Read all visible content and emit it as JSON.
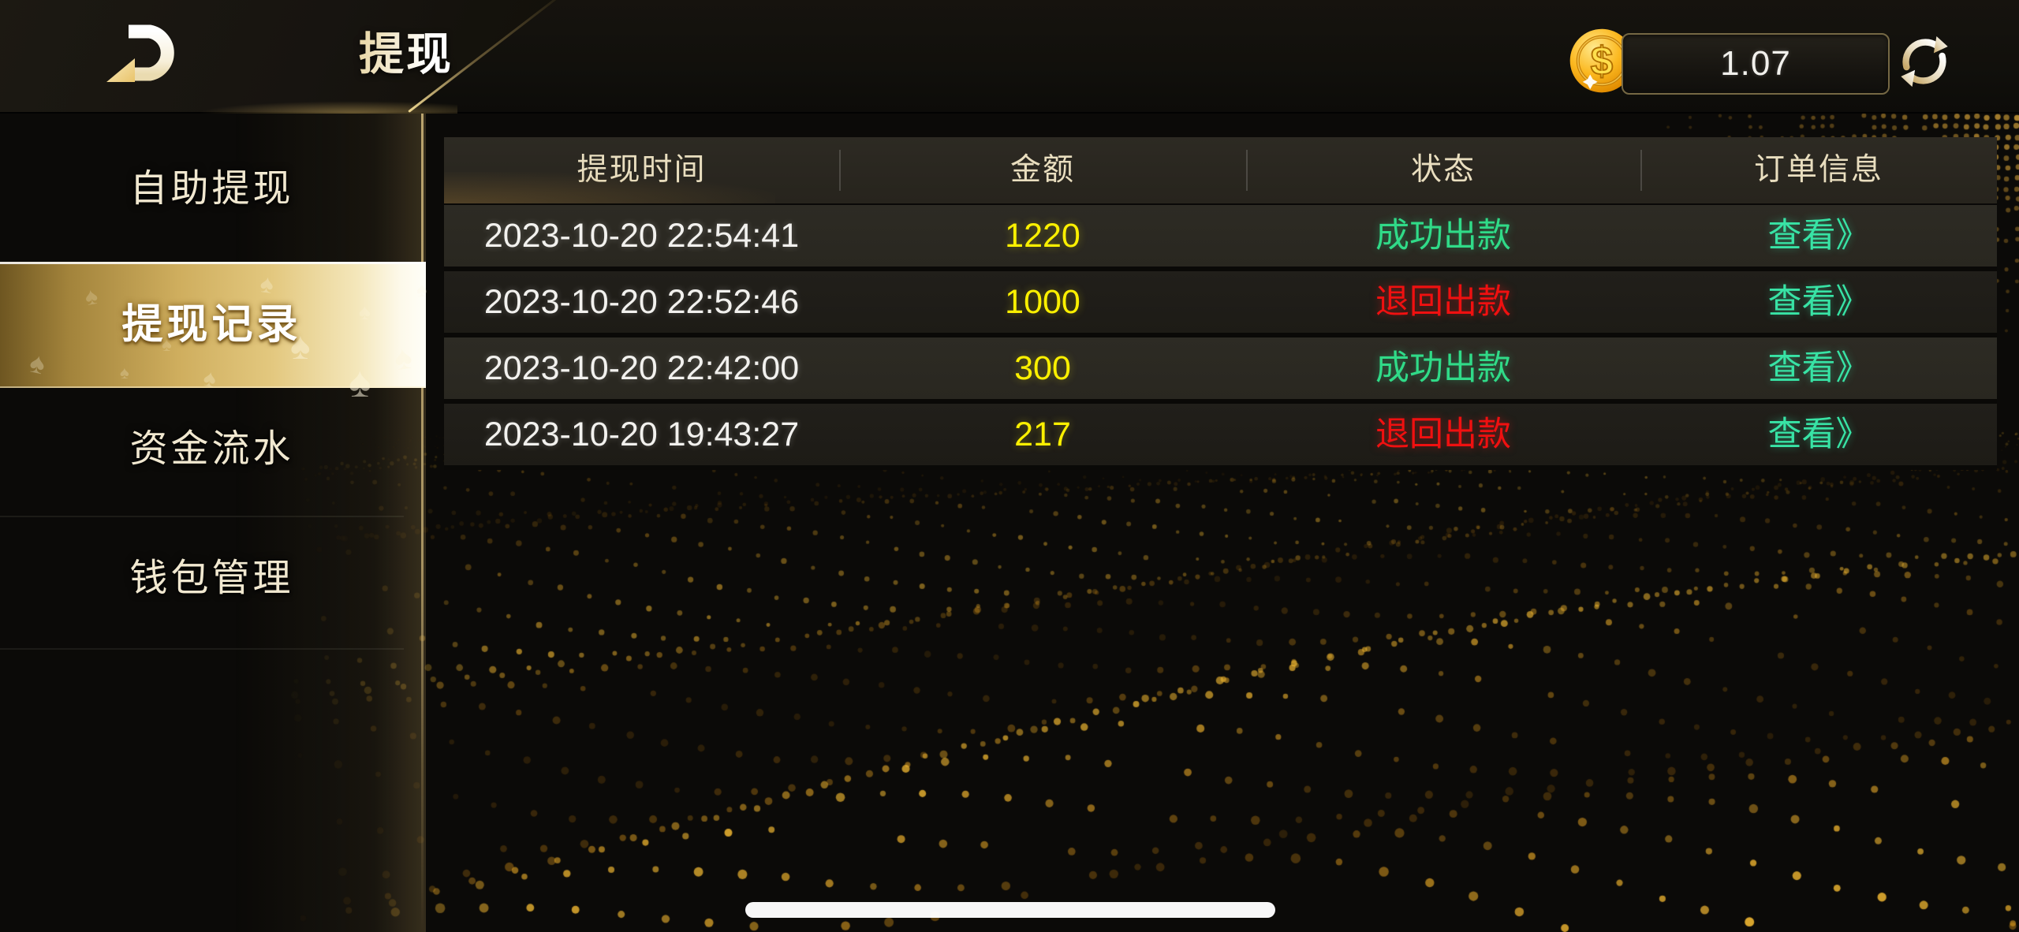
{
  "topbar": {
    "title": "提现",
    "balance": "1.07",
    "logo_icon": "d-swoosh-logo",
    "coin_icon": "gold-dollar-coin",
    "refresh_icon": "refresh-arrows"
  },
  "sidebar": {
    "items": [
      {
        "label": "自助提现",
        "selected": false
      },
      {
        "label": "提现记录",
        "selected": true
      },
      {
        "label": "资金流水",
        "selected": false
      },
      {
        "label": "钱包管理",
        "selected": false
      }
    ]
  },
  "table": {
    "columns": [
      "提现时间",
      "金额",
      "状态",
      "订单信息"
    ],
    "rows": [
      {
        "time": "2023-10-20 22:54:41",
        "amount": "1220",
        "status": "成功出款",
        "status_type": "success",
        "action": "查看》"
      },
      {
        "time": "2023-10-20 22:52:46",
        "amount": "1000",
        "status": "退回出款",
        "status_type": "refund",
        "action": "查看》"
      },
      {
        "time": "2023-10-20 22:42:00",
        "amount": "300",
        "status": "成功出款",
        "status_type": "success",
        "action": "查看》"
      },
      {
        "time": "2023-10-20 19:43:27",
        "amount": "217",
        "status": "退回出款",
        "status_type": "refund",
        "action": "查看》"
      }
    ]
  },
  "colors": {
    "accent_gold": "#d2b263",
    "amount_yellow": "#fbf000",
    "success_green": "#30db88",
    "refund_red": "#f01010",
    "link_teal": "#38e3a5",
    "header_text": "#e9debf"
  }
}
